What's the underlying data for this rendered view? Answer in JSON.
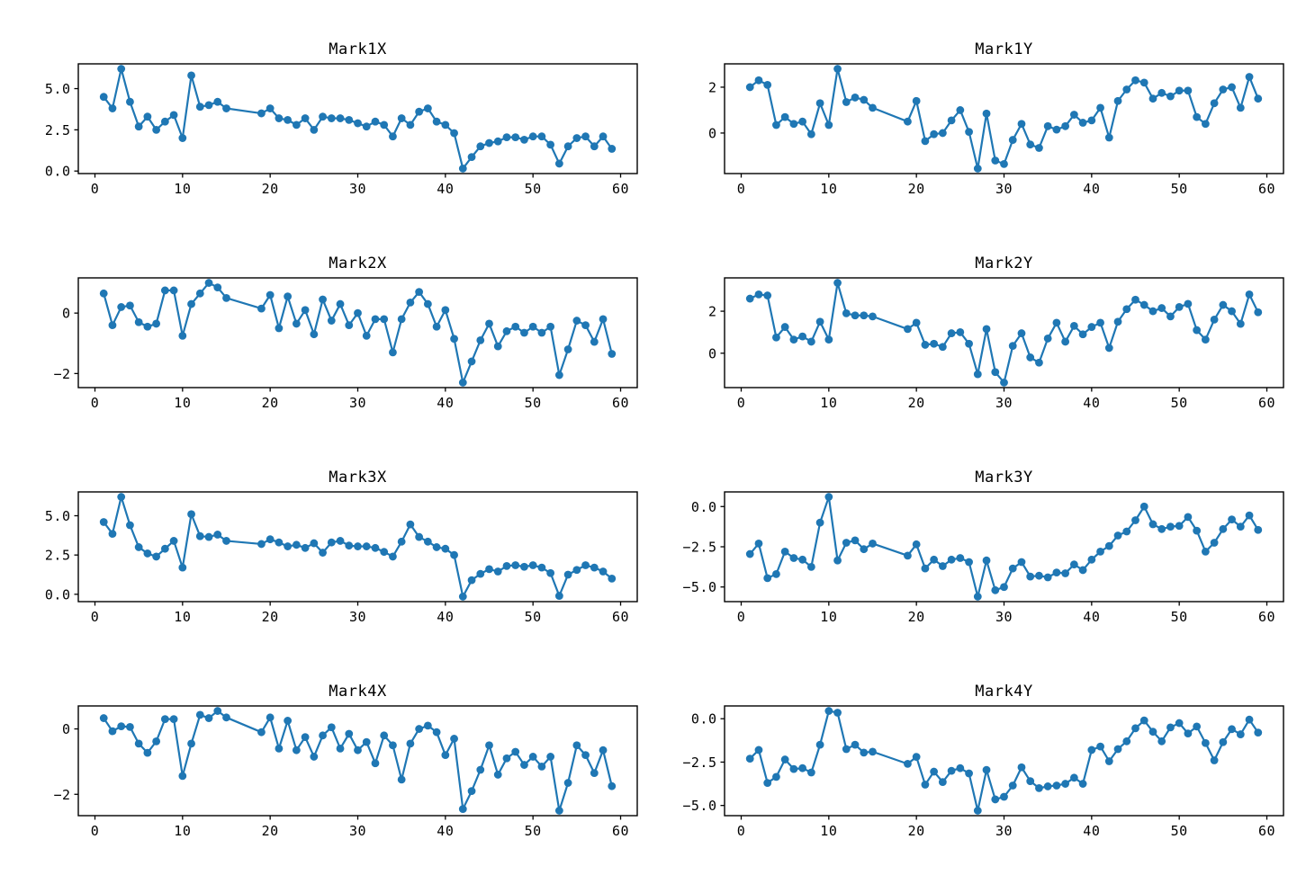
{
  "figure": {
    "background": "#ffffff",
    "series_color": "#1f77b4",
    "axes_color": "#000000"
  },
  "chart_data": [
    {
      "type": "line",
      "title": "Mark1X",
      "marker": "circle",
      "legend": "none",
      "grid": false,
      "xlim": [
        -1.9,
        61.9
      ],
      "xticks": [
        0,
        10,
        20,
        30,
        40,
        50,
        60
      ],
      "xtick_labels": [
        "0",
        "10",
        "20",
        "30",
        "40",
        "50",
        "60"
      ],
      "yticks": [
        0.0,
        2.5,
        5.0
      ],
      "ytick_labels": [
        "0.0",
        "2.5",
        "5.0"
      ],
      "x": [
        1,
        2,
        3,
        4,
        5,
        6,
        7,
        8,
        9,
        10,
        11,
        12,
        13,
        14,
        15,
        19,
        20,
        21,
        22,
        23,
        24,
        25,
        26,
        27,
        28,
        29,
        30,
        31,
        32,
        33,
        34,
        35,
        36,
        37,
        38,
        39,
        40,
        41,
        42,
        43,
        44,
        45,
        46,
        47,
        48,
        49,
        50,
        51,
        52,
        53,
        54,
        55,
        56,
        57,
        58,
        59
      ],
      "y": [
        4.5,
        3.8,
        6.2,
        4.2,
        2.7,
        3.3,
        2.5,
        3.0,
        3.4,
        2.0,
        5.8,
        3.9,
        4.0,
        4.2,
        3.8,
        3.5,
        3.8,
        3.2,
        3.1,
        2.8,
        3.2,
        2.5,
        3.3,
        3.2,
        3.2,
        3.1,
        2.9,
        2.7,
        3.0,
        2.8,
        2.1,
        3.2,
        2.8,
        3.6,
        3.8,
        3.0,
        2.8,
        2.3,
        0.15,
        0.85,
        1.5,
        1.7,
        1.8,
        2.05,
        2.05,
        1.9,
        2.1,
        2.1,
        1.6,
        0.45,
        1.5,
        2.0,
        2.1,
        1.5,
        2.1,
        1.35
      ]
    },
    {
      "type": "line",
      "title": "Mark1Y",
      "marker": "circle",
      "legend": "none",
      "grid": false,
      "xlim": [
        -1.9,
        61.9
      ],
      "xticks": [
        0,
        10,
        20,
        30,
        40,
        50,
        60
      ],
      "xtick_labels": [
        "0",
        "10",
        "20",
        "30",
        "40",
        "50",
        "60"
      ],
      "yticks": [
        0,
        2
      ],
      "ytick_labels": [
        "0",
        "2"
      ],
      "x": [
        1,
        2,
        3,
        4,
        5,
        6,
        7,
        8,
        9,
        10,
        11,
        12,
        13,
        14,
        15,
        19,
        20,
        21,
        22,
        23,
        24,
        25,
        26,
        27,
        28,
        29,
        30,
        31,
        32,
        33,
        34,
        35,
        36,
        37,
        38,
        39,
        40,
        41,
        42,
        43,
        44,
        45,
        46,
        47,
        48,
        49,
        50,
        51,
        52,
        53,
        54,
        55,
        56,
        57,
        58,
        59
      ],
      "y": [
        2.0,
        2.3,
        2.1,
        0.35,
        0.7,
        0.4,
        0.5,
        -0.05,
        1.3,
        0.35,
        2.8,
        1.35,
        1.55,
        1.45,
        1.1,
        0.5,
        1.4,
        -0.35,
        -0.05,
        0.0,
        0.55,
        1.0,
        0.05,
        -1.55,
        0.85,
        -1.2,
        -1.35,
        -0.3,
        0.4,
        -0.5,
        -0.65,
        0.3,
        0.15,
        0.3,
        0.8,
        0.45,
        0.55,
        1.1,
        -0.2,
        1.4,
        1.9,
        2.3,
        2.2,
        1.5,
        1.75,
        1.6,
        1.85,
        1.85,
        0.7,
        0.4,
        1.3,
        1.9,
        2.0,
        1.1,
        2.45,
        1.5
      ]
    },
    {
      "type": "line",
      "title": "Mark2X",
      "marker": "circle",
      "legend": "none",
      "grid": false,
      "xlim": [
        -1.9,
        61.9
      ],
      "xticks": [
        0,
        10,
        20,
        30,
        40,
        50,
        60
      ],
      "xtick_labels": [
        "0",
        "10",
        "20",
        "30",
        "40",
        "50",
        "60"
      ],
      "yticks": [
        -2,
        0
      ],
      "ytick_labels": [
        "−2",
        "0"
      ],
      "x": [
        1,
        2,
        3,
        4,
        5,
        6,
        7,
        8,
        9,
        10,
        11,
        12,
        13,
        14,
        15,
        19,
        20,
        21,
        22,
        23,
        24,
        25,
        26,
        27,
        28,
        29,
        30,
        31,
        32,
        33,
        34,
        35,
        36,
        37,
        38,
        39,
        40,
        41,
        42,
        43,
        44,
        45,
        46,
        47,
        48,
        49,
        50,
        51,
        52,
        53,
        54,
        55,
        56,
        57,
        58,
        59
      ],
      "y": [
        0.65,
        -0.4,
        0.2,
        0.25,
        -0.3,
        -0.45,
        -0.35,
        0.75,
        0.75,
        -0.75,
        0.3,
        0.65,
        1.0,
        0.85,
        0.5,
        0.15,
        0.6,
        -0.5,
        0.55,
        -0.35,
        0.1,
        -0.7,
        0.45,
        -0.25,
        0.3,
        -0.4,
        0.0,
        -0.75,
        -0.2,
        -0.2,
        -1.3,
        -0.2,
        0.35,
        0.7,
        0.3,
        -0.45,
        0.1,
        -0.85,
        -2.3,
        -1.6,
        -0.9,
        -0.35,
        -1.1,
        -0.6,
        -0.45,
        -0.65,
        -0.45,
        -0.65,
        -0.45,
        -2.05,
        -1.2,
        -0.25,
        -0.4,
        -0.95,
        -0.2,
        -1.35
      ]
    },
    {
      "type": "line",
      "title": "Mark2Y",
      "marker": "circle",
      "legend": "none",
      "grid": false,
      "xlim": [
        -1.9,
        61.9
      ],
      "xticks": [
        0,
        10,
        20,
        30,
        40,
        50,
        60
      ],
      "xtick_labels": [
        "0",
        "10",
        "20",
        "30",
        "40",
        "50",
        "60"
      ],
      "yticks": [
        0,
        2
      ],
      "ytick_labels": [
        "0",
        "2"
      ],
      "x": [
        1,
        2,
        3,
        4,
        5,
        6,
        7,
        8,
        9,
        10,
        11,
        12,
        13,
        14,
        15,
        19,
        20,
        21,
        22,
        23,
        24,
        25,
        26,
        27,
        28,
        29,
        30,
        31,
        32,
        33,
        34,
        35,
        36,
        37,
        38,
        39,
        40,
        41,
        42,
        43,
        44,
        45,
        46,
        47,
        48,
        49,
        50,
        51,
        52,
        53,
        54,
        55,
        56,
        57,
        58,
        59
      ],
      "y": [
        2.6,
        2.8,
        2.75,
        0.75,
        1.25,
        0.65,
        0.8,
        0.55,
        1.5,
        0.65,
        3.35,
        1.9,
        1.8,
        1.8,
        1.75,
        1.15,
        1.45,
        0.4,
        0.45,
        0.3,
        0.95,
        1.0,
        0.45,
        -1.0,
        1.15,
        -0.9,
        -1.4,
        0.35,
        0.95,
        -0.2,
        -0.45,
        0.7,
        1.45,
        0.55,
        1.3,
        0.9,
        1.25,
        1.45,
        0.25,
        1.5,
        2.1,
        2.55,
        2.3,
        2.0,
        2.15,
        1.75,
        2.2,
        2.35,
        1.1,
        0.65,
        1.6,
        2.3,
        2.0,
        1.4,
        2.8,
        1.95
      ]
    },
    {
      "type": "line",
      "title": "Mark3X",
      "marker": "circle",
      "legend": "none",
      "grid": false,
      "xlim": [
        -1.9,
        61.9
      ],
      "xticks": [
        0,
        10,
        20,
        30,
        40,
        50,
        60
      ],
      "xtick_labels": [
        "0",
        "10",
        "20",
        "30",
        "40",
        "50",
        "60"
      ],
      "yticks": [
        0.0,
        2.5,
        5.0
      ],
      "ytick_labels": [
        "0.0",
        "2.5",
        "5.0"
      ],
      "x": [
        1,
        2,
        3,
        4,
        5,
        6,
        7,
        8,
        9,
        10,
        11,
        12,
        13,
        14,
        15,
        19,
        20,
        21,
        22,
        23,
        24,
        25,
        26,
        27,
        28,
        29,
        30,
        31,
        32,
        33,
        34,
        35,
        36,
        37,
        38,
        39,
        40,
        41,
        42,
        43,
        44,
        45,
        46,
        47,
        48,
        49,
        50,
        51,
        52,
        53,
        54,
        55,
        56,
        57,
        58,
        59
      ],
      "y": [
        4.6,
        3.85,
        6.2,
        4.4,
        3.0,
        2.6,
        2.4,
        2.9,
        3.4,
        1.7,
        5.1,
        3.7,
        3.65,
        3.8,
        3.4,
        3.2,
        3.5,
        3.3,
        3.05,
        3.15,
        2.95,
        3.25,
        2.65,
        3.3,
        3.4,
        3.1,
        3.05,
        3.05,
        2.95,
        2.7,
        2.4,
        3.35,
        4.45,
        3.65,
        3.35,
        3.0,
        2.9,
        2.5,
        -0.15,
        0.9,
        1.3,
        1.6,
        1.45,
        1.8,
        1.85,
        1.75,
        1.85,
        1.7,
        1.35,
        -0.1,
        1.25,
        1.55,
        1.85,
        1.7,
        1.45,
        1.0
      ]
    },
    {
      "type": "line",
      "title": "Mark3Y",
      "marker": "circle",
      "legend": "none",
      "grid": false,
      "xlim": [
        -1.9,
        61.9
      ],
      "xticks": [
        0,
        10,
        20,
        30,
        40,
        50,
        60
      ],
      "xtick_labels": [
        "0",
        "10",
        "20",
        "30",
        "40",
        "50",
        "60"
      ],
      "yticks": [
        -5.0,
        -2.5,
        0.0
      ],
      "ytick_labels": [
        "−5.0",
        "−2.5",
        "0.0"
      ],
      "x": [
        1,
        2,
        3,
        4,
        5,
        6,
        7,
        8,
        9,
        10,
        11,
        12,
        13,
        14,
        15,
        19,
        20,
        21,
        22,
        23,
        24,
        25,
        26,
        27,
        28,
        29,
        30,
        31,
        32,
        33,
        34,
        35,
        36,
        37,
        38,
        39,
        40,
        41,
        42,
        43,
        44,
        45,
        46,
        47,
        48,
        49,
        50,
        51,
        52,
        53,
        54,
        55,
        56,
        57,
        58,
        59
      ],
      "y": [
        -2.95,
        -2.3,
        -4.45,
        -4.2,
        -2.8,
        -3.2,
        -3.3,
        -3.75,
        -1.0,
        0.6,
        -3.35,
        -2.25,
        -2.1,
        -2.65,
        -2.3,
        -3.05,
        -2.35,
        -3.85,
        -3.3,
        -3.7,
        -3.3,
        -3.2,
        -3.45,
        -5.6,
        -3.35,
        -5.2,
        -5.0,
        -3.85,
        -3.45,
        -4.35,
        -4.3,
        -4.4,
        -4.1,
        -4.15,
        -3.6,
        -3.95,
        -3.3,
        -2.8,
        -2.45,
        -1.8,
        -1.55,
        -0.85,
        0.0,
        -1.1,
        -1.4,
        -1.25,
        -1.2,
        -0.65,
        -1.5,
        -2.8,
        -2.25,
        -1.4,
        -0.8,
        -1.25,
        -0.55,
        -1.45
      ]
    },
    {
      "type": "line",
      "title": "Mark4X",
      "marker": "circle",
      "legend": "none",
      "grid": false,
      "xlim": [
        -1.9,
        61.9
      ],
      "xticks": [
        0,
        10,
        20,
        30,
        40,
        50,
        60
      ],
      "xtick_labels": [
        "0",
        "10",
        "20",
        "30",
        "40",
        "50",
        "60"
      ],
      "yticks": [
        -2,
        0
      ],
      "ytick_labels": [
        "−2",
        "0"
      ],
      "x": [
        1,
        2,
        3,
        4,
        5,
        6,
        7,
        8,
        9,
        10,
        11,
        12,
        13,
        14,
        15,
        19,
        20,
        21,
        22,
        23,
        24,
        25,
        26,
        27,
        28,
        29,
        30,
        31,
        32,
        33,
        34,
        35,
        36,
        37,
        38,
        39,
        40,
        41,
        42,
        43,
        44,
        45,
        46,
        47,
        48,
        49,
        50,
        51,
        52,
        53,
        54,
        55,
        56,
        57,
        58,
        59
      ],
      "y": [
        0.33,
        -0.07,
        0.08,
        0.06,
        -0.45,
        -0.73,
        -0.38,
        0.3,
        0.3,
        -1.44,
        -0.45,
        0.43,
        0.33,
        0.55,
        0.35,
        -0.1,
        0.35,
        -0.6,
        0.25,
        -0.65,
        -0.25,
        -0.85,
        -0.2,
        0.05,
        -0.6,
        -0.15,
        -0.65,
        -0.4,
        -1.05,
        -0.2,
        -0.5,
        -1.55,
        -0.45,
        0.0,
        0.1,
        -0.1,
        -0.8,
        -0.3,
        -2.45,
        -1.9,
        -1.25,
        -0.5,
        -1.4,
        -0.9,
        -0.7,
        -1.1,
        -0.85,
        -1.15,
        -0.85,
        -2.5,
        -1.65,
        -0.5,
        -0.8,
        -1.35,
        -0.65,
        -1.75
      ]
    },
    {
      "type": "line",
      "title": "Mark4Y",
      "marker": "circle",
      "legend": "none",
      "grid": false,
      "xlim": [
        -1.9,
        61.9
      ],
      "xticks": [
        0,
        10,
        20,
        30,
        40,
        50,
        60
      ],
      "xtick_labels": [
        "0",
        "10",
        "20",
        "30",
        "40",
        "50",
        "60"
      ],
      "yticks": [
        -5.0,
        -2.5,
        0.0
      ],
      "ytick_labels": [
        "−5.0",
        "−2.5",
        "0.0"
      ],
      "x": [
        1,
        2,
        3,
        4,
        5,
        6,
        7,
        8,
        9,
        10,
        11,
        12,
        13,
        14,
        15,
        19,
        20,
        21,
        22,
        23,
        24,
        25,
        26,
        27,
        28,
        29,
        30,
        31,
        32,
        33,
        34,
        35,
        36,
        37,
        38,
        39,
        40,
        41,
        42,
        43,
        44,
        45,
        46,
        47,
        48,
        49,
        50,
        51,
        52,
        53,
        54,
        55,
        56,
        57,
        58,
        59
      ],
      "y": [
        -2.3,
        -1.8,
        -3.7,
        -3.35,
        -2.35,
        -2.9,
        -2.85,
        -3.1,
        -1.5,
        0.45,
        0.35,
        -1.75,
        -1.5,
        -1.95,
        -1.9,
        -2.6,
        -2.2,
        -3.8,
        -3.05,
        -3.65,
        -3.0,
        -2.85,
        -3.15,
        -5.3,
        -2.95,
        -4.65,
        -4.5,
        -3.85,
        -2.8,
        -3.6,
        -4.0,
        -3.9,
        -3.85,
        -3.75,
        -3.4,
        -3.75,
        -1.8,
        -1.6,
        -2.45,
        -1.75,
        -1.3,
        -0.55,
        -0.1,
        -0.75,
        -1.3,
        -0.5,
        -0.25,
        -0.85,
        -0.45,
        -1.4,
        -2.4,
        -1.35,
        -0.6,
        -0.9,
        -0.05,
        -0.8
      ]
    }
  ]
}
